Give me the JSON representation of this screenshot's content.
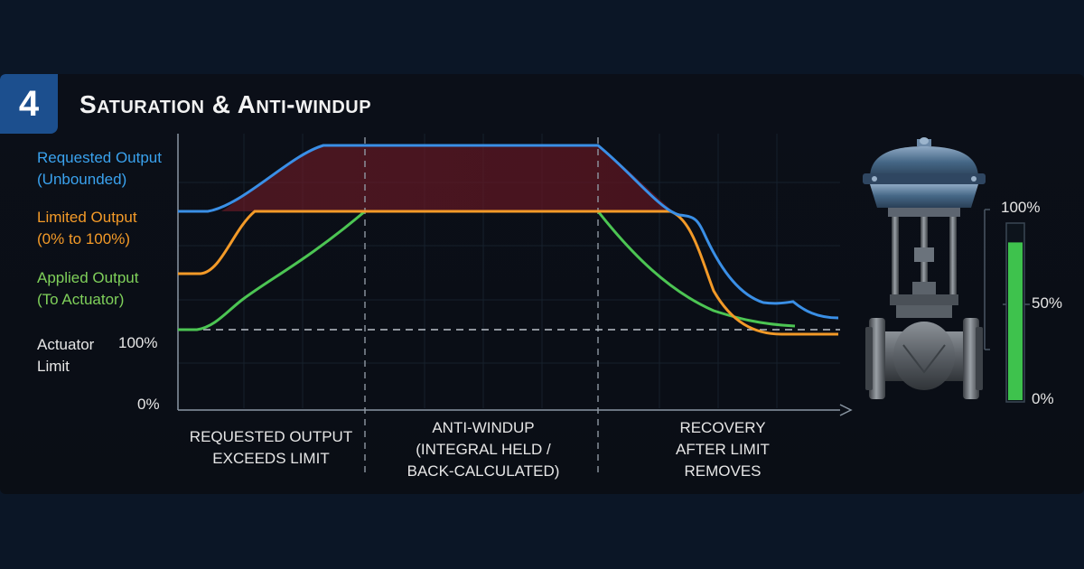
{
  "header": {
    "step_number": "4",
    "title": "Saturation & Anti-windup"
  },
  "legend": {
    "requested": {
      "line1": "Requested Output",
      "line2": "(Unbounded)",
      "color": "#3aa2ee"
    },
    "limited": {
      "line1": "Limited Output",
      "line2": "(0% to 100%)",
      "color": "#f39a28"
    },
    "applied": {
      "line1": "Applied Output",
      "line2": "(To Actuator)",
      "color": "#4cc553"
    },
    "actuator": {
      "line1": "Actuator",
      "line2": "Limit"
    }
  },
  "y_ticks": {
    "top": "100%",
    "bottom": "0%"
  },
  "phases": [
    {
      "line1": "Requested Output",
      "line2": "Exceeds Limit",
      "line3": ""
    },
    {
      "line1": "Anti-windup",
      "line2": "(Integral held /",
      "line3": "back-calculated)"
    },
    {
      "line1": "Recovery",
      "line2": "After limit",
      "line3": "removes"
    }
  ],
  "gauge": {
    "labels": {
      "top": "100%",
      "mid": "50%",
      "bottom": "0%"
    },
    "fill_fraction": 0.9,
    "fill_color": "#3ec24d"
  },
  "colors": {
    "windup_area": "#6e1a24",
    "valve_body": "#4e5358",
    "valve_actuator": "#3f5d7e"
  }
}
